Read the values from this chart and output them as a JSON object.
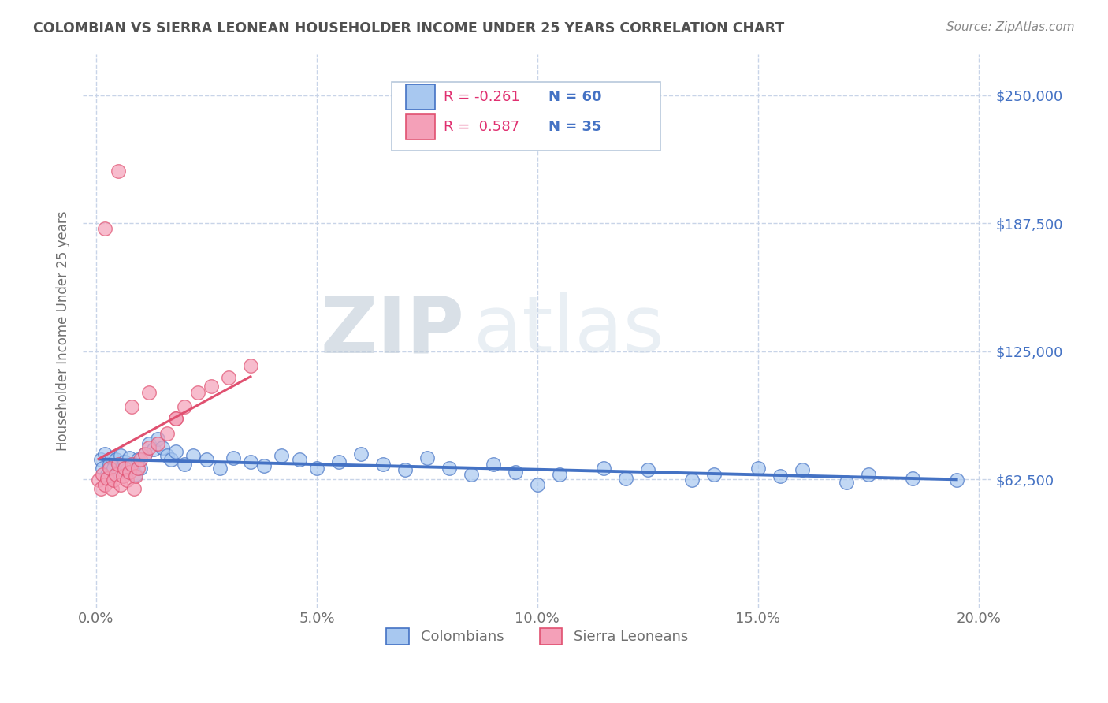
{
  "title": "COLOMBIAN VS SIERRA LEONEAN HOUSEHOLDER INCOME UNDER 25 YEARS CORRELATION CHART",
  "source": "Source: ZipAtlas.com",
  "ylabel": "Householder Income Under 25 years",
  "xlabel_vals": [
    0.0,
    5.0,
    10.0,
    15.0,
    20.0
  ],
  "yticks": [
    0,
    62500,
    125000,
    187500,
    250000
  ],
  "ytick_labels": [
    "",
    "$62,500",
    "$125,000",
    "$187,500",
    "$250,000"
  ],
  "ylim": [
    20000,
    270000
  ],
  "xlim": [
    -0.3,
    20.3
  ],
  "watermark_zip": "ZIP",
  "watermark_atlas": "atlas",
  "colombian_color": "#a8c8f0",
  "sierraleone_color": "#f4a0b8",
  "trendline_colombian": "#4472c4",
  "trendline_sierraleone": "#e05070",
  "blue_color": "#4472c4",
  "title_color": "#505050",
  "axis_label_color": "#707070",
  "tick_color_y": "#4472c4",
  "background_color": "#ffffff",
  "grid_color": "#c8d4e8",
  "colombians_scatter_x": [
    0.1,
    0.15,
    0.2,
    0.25,
    0.3,
    0.35,
    0.4,
    0.45,
    0.5,
    0.55,
    0.6,
    0.65,
    0.7,
    0.75,
    0.8,
    0.85,
    0.9,
    0.95,
    1.0,
    1.1,
    1.2,
    1.3,
    1.4,
    1.5,
    1.6,
    1.7,
    1.8,
    2.0,
    2.2,
    2.5,
    2.8,
    3.1,
    3.5,
    3.8,
    4.2,
    4.6,
    5.0,
    5.5,
    6.0,
    6.5,
    7.0,
    7.5,
    8.0,
    8.5,
    9.0,
    9.5,
    10.0,
    10.5,
    11.5,
    12.0,
    12.5,
    13.5,
    14.0,
    15.0,
    15.5,
    16.0,
    17.0,
    17.5,
    18.5,
    19.5
  ],
  "colombians_scatter_y": [
    72000,
    68000,
    75000,
    65000,
    70000,
    73000,
    68000,
    72000,
    66000,
    74000,
    69000,
    71000,
    67000,
    73000,
    68000,
    70000,
    65000,
    72000,
    68000,
    75000,
    80000,
    77000,
    82000,
    78000,
    74000,
    72000,
    76000,
    70000,
    74000,
    72000,
    68000,
    73000,
    71000,
    69000,
    74000,
    72000,
    68000,
    71000,
    75000,
    70000,
    67000,
    73000,
    68000,
    65000,
    70000,
    66000,
    60000,
    65000,
    68000,
    63000,
    67000,
    62000,
    65000,
    68000,
    64000,
    67000,
    61000,
    65000,
    63000,
    62000
  ],
  "sierraleone_scatter_x": [
    0.05,
    0.1,
    0.15,
    0.2,
    0.25,
    0.3,
    0.35,
    0.4,
    0.45,
    0.5,
    0.55,
    0.6,
    0.65,
    0.7,
    0.75,
    0.8,
    0.85,
    0.9,
    0.95,
    1.0,
    1.1,
    1.2,
    1.4,
    1.6,
    1.8,
    2.0,
    2.3,
    2.6,
    3.0,
    3.5,
    0.2,
    0.5,
    0.8,
    1.2,
    1.8
  ],
  "sierraleone_scatter_y": [
    62000,
    58000,
    65000,
    60000,
    63000,
    68000,
    58000,
    62000,
    65000,
    70000,
    60000,
    64000,
    68000,
    62000,
    66000,
    70000,
    58000,
    64000,
    68000,
    72000,
    75000,
    78000,
    80000,
    85000,
    92000,
    98000,
    105000,
    108000,
    112000,
    118000,
    185000,
    213000,
    98000,
    105000,
    92000
  ]
}
